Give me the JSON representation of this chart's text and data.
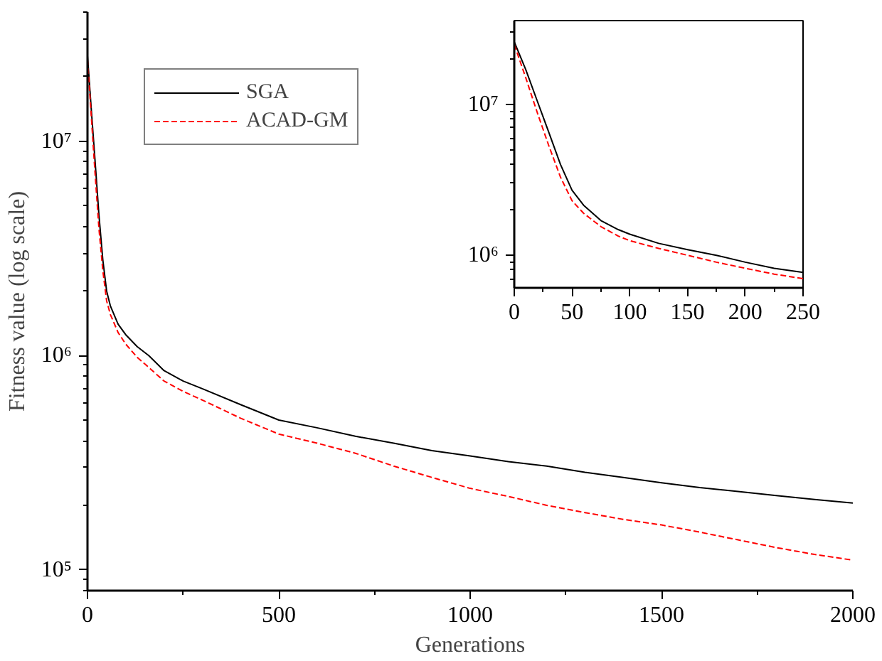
{
  "chart_data": [
    {
      "type": "line",
      "xlabel": "Generations",
      "ylabel": "Fitness value (log scale)",
      "log": "y",
      "legend": "top left",
      "grid": false,
      "xlim": [
        0,
        2000
      ],
      "xticks": [
        0,
        500,
        1000,
        1500,
        2000
      ],
      "ylim": [
        80000,
        40000000
      ],
      "yticks": [
        {
          "value": 100000,
          "label": "10⁵"
        },
        {
          "value": 1000000,
          "label": "10⁶"
        },
        {
          "value": 10000000,
          "label": "10⁷"
        }
      ],
      "x": [
        0,
        10,
        20,
        30,
        40,
        50,
        60,
        80,
        100,
        130,
        160,
        200,
        250,
        300,
        400,
        500,
        600,
        700,
        800,
        900,
        1000,
        1100,
        1200,
        1300,
        1400,
        1500,
        1600,
        1700,
        1800,
        1900,
        2000
      ],
      "series": [
        {
          "name": "SGA",
          "color": "#000000",
          "line_style": "solid",
          "values": [
            25000000,
            14000000,
            8000000,
            4500000,
            2800000,
            2000000,
            1700000,
            1400000,
            1250000,
            1100000,
            1000000,
            850000,
            760000,
            700000,
            590000,
            500000,
            460000,
            420000,
            390000,
            360000,
            340000,
            320000,
            305000,
            285000,
            270000,
            255000,
            242000,
            232000,
            222000,
            213000,
            205000
          ]
        },
        {
          "name": "ACAD-GM",
          "color": "#ff0000",
          "line_style": "dashed",
          "values": [
            24000000,
            13000000,
            7000000,
            3900000,
            2500000,
            1800000,
            1550000,
            1280000,
            1130000,
            980000,
            880000,
            760000,
            680000,
            620000,
            510000,
            430000,
            390000,
            350000,
            305000,
            270000,
            240000,
            220000,
            200000,
            185000,
            172000,
            162000,
            150000,
            138000,
            127000,
            118000,
            111000
          ]
        }
      ]
    },
    {
      "type": "line",
      "log": "y",
      "legend": false,
      "grid": false,
      "xlim": [
        0,
        250
      ],
      "xticks": [
        0,
        50,
        100,
        150,
        200,
        250
      ],
      "ylim": [
        608000,
        36000000
      ],
      "yticks": [
        {
          "value": 1000000,
          "label": "10⁶"
        },
        {
          "value": 10000000,
          "label": "10⁷"
        }
      ],
      "x": [
        0,
        10,
        20,
        30,
        40,
        50,
        60,
        75,
        90,
        100,
        125,
        150,
        175,
        200,
        225,
        250
      ],
      "series": [
        {
          "color": "#000000",
          "line_style": "solid",
          "values": [
            26000000,
            17000000,
            10500000,
            6500000,
            4000000,
            2700000,
            2150000,
            1700000,
            1480000,
            1380000,
            1200000,
            1090000,
            1000000,
            900000,
            820000,
            770000
          ]
        },
        {
          "color": "#ff0000",
          "line_style": "dashed",
          "values": [
            25000000,
            15000000,
            8800000,
            5300000,
            3300000,
            2300000,
            1900000,
            1550000,
            1340000,
            1250000,
            1110000,
            1000000,
            900000,
            820000,
            750000,
            700000
          ]
        }
      ]
    }
  ]
}
